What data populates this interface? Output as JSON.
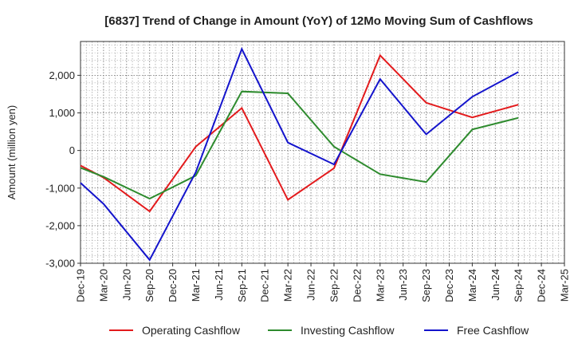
{
  "chart_data": {
    "type": "line",
    "title": "[6837]  Trend of Change in Amount (YoY) of 12Mo Moving Sum of Cashflows",
    "ylabel": "Amount (million yen)",
    "xlabel": "",
    "ylim": [
      -3000,
      2900
    ],
    "yticks": [
      -3000,
      -2000,
      -1000,
      0,
      1000,
      2000
    ],
    "ytick_labels": [
      "-3,000",
      "-2,000",
      "-1,000",
      "0",
      "1,000",
      "2,000"
    ],
    "categories": [
      "Dec-19",
      "Mar-20",
      "Jun-20",
      "Sep-20",
      "Dec-20",
      "Mar-21",
      "Jun-21",
      "Sep-21",
      "Dec-21",
      "Mar-22",
      "Jun-22",
      "Sep-22",
      "Dec-22",
      "Mar-23",
      "Jun-23",
      "Sep-23",
      "Dec-23",
      "Mar-24",
      "Jun-24",
      "Sep-24",
      "Dec-24",
      "Mar-25"
    ],
    "grid": true,
    "legend_position": "bottom",
    "series": [
      {
        "name": "Operating Cashflow",
        "color": "#e31a1c",
        "values": [
          -400,
          -720,
          null,
          -1620,
          null,
          100,
          null,
          1130,
          null,
          -1310,
          null,
          -470,
          null,
          2530,
          null,
          1270,
          null,
          880,
          null,
          1220,
          null,
          null
        ]
      },
      {
        "name": "Investing Cashflow",
        "color": "#2e8b2e",
        "values": [
          -460,
          -700,
          null,
          -1280,
          null,
          -670,
          null,
          1570,
          null,
          1520,
          null,
          100,
          null,
          -630,
          null,
          -840,
          null,
          560,
          null,
          870,
          null,
          null
        ]
      },
      {
        "name": "Free Cashflow",
        "color": "#1414cc",
        "values": [
          -860,
          -1420,
          null,
          -2910,
          null,
          -580,
          null,
          2700,
          null,
          210,
          null,
          -370,
          null,
          1900,
          null,
          430,
          null,
          1430,
          null,
          2090,
          null,
          null
        ]
      }
    ]
  }
}
